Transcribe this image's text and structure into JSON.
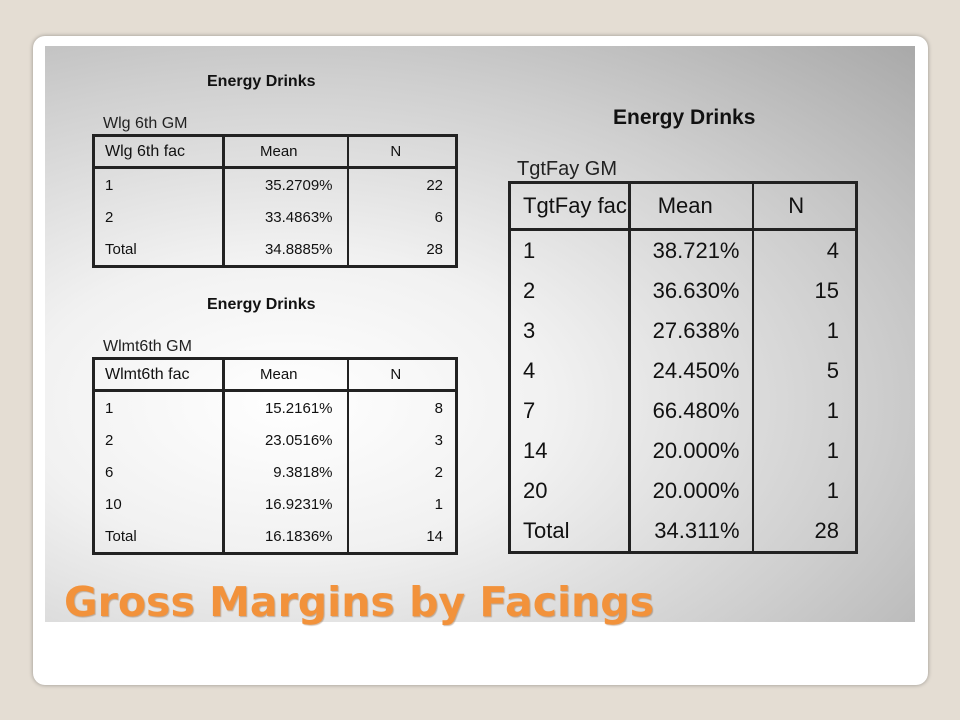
{
  "slide_title": "Gross Margins by Facings",
  "tables": {
    "wlg": {
      "title": "Energy Drinks",
      "subtitle": "Wlg 6th GM",
      "headers": [
        "Wlg 6th fac",
        "Mean",
        "N"
      ],
      "rows": [
        [
          "1",
          "35.2709%",
          "22"
        ],
        [
          "2",
          "33.4863%",
          "6"
        ],
        [
          "Total",
          "34.8885%",
          "28"
        ]
      ]
    },
    "wlmt": {
      "title": "Energy Drinks",
      "subtitle": "Wlmt6th GM",
      "headers": [
        "Wlmt6th fac",
        "Mean",
        "N"
      ],
      "rows": [
        [
          "1",
          "15.2161%",
          "8"
        ],
        [
          "2",
          "23.0516%",
          "3"
        ],
        [
          "6",
          "9.3818%",
          "2"
        ],
        [
          "10",
          "16.9231%",
          "1"
        ],
        [
          "Total",
          "16.1836%",
          "14"
        ]
      ]
    },
    "tgtfay": {
      "title": "Energy Drinks",
      "subtitle": "TgtFay GM",
      "headers": [
        "TgtFay fac",
        "Mean",
        "N"
      ],
      "rows": [
        [
          "1",
          "38.721%",
          "4"
        ],
        [
          "2",
          "36.630%",
          "15"
        ],
        [
          "3",
          "27.638%",
          "1"
        ],
        [
          "4",
          "24.450%",
          "5"
        ],
        [
          "7",
          "66.480%",
          "1"
        ],
        [
          "14",
          "20.000%",
          "1"
        ],
        [
          "20",
          "20.000%",
          "1"
        ],
        [
          "Total",
          "34.311%",
          "28"
        ]
      ]
    }
  }
}
